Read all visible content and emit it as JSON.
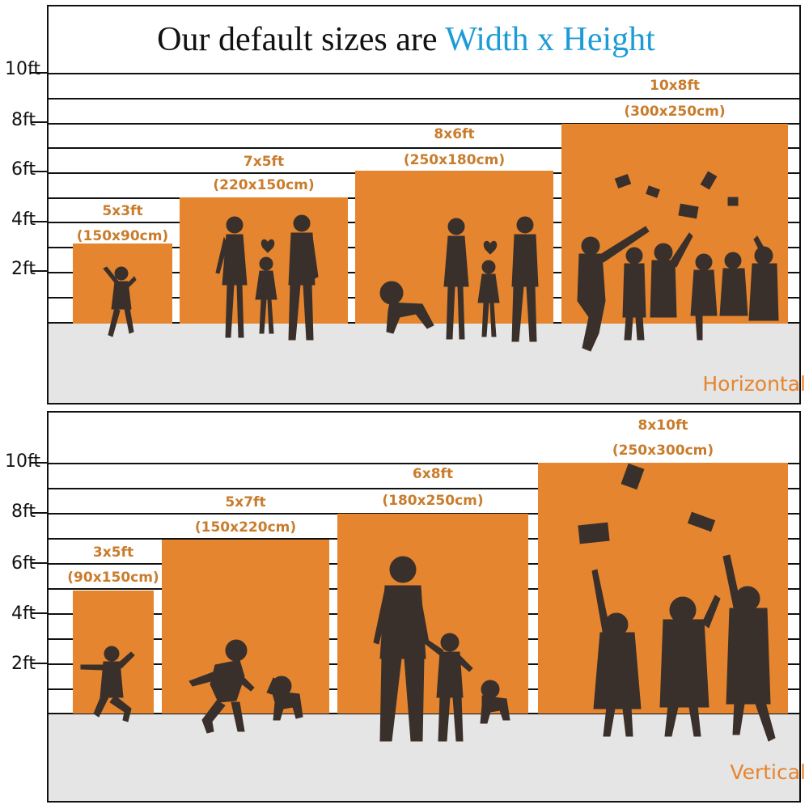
{
  "title": {
    "prefix": "Our default sizes are",
    "highlight": "Width x Height"
  },
  "colors": {
    "backdrop": "#e5852f",
    "label": "#c97c2c",
    "highlight": "#1d9bd6",
    "floor": "#e5e5e5",
    "silhouette": "#3a302b"
  },
  "horizontal": {
    "label": "Horizontal",
    "y_axis": [
      "10ft",
      "8ft",
      "6ft",
      "4ft",
      "2ft"
    ],
    "sizes": [
      {
        "ft": "5x3ft",
        "cm": "(150x90cm)",
        "figure": "girl-silhouette"
      },
      {
        "ft": "7x5ft",
        "cm": "(220x150cm)",
        "figure": "family-silhouette"
      },
      {
        "ft": "8x6ft",
        "cm": "(250x180cm)",
        "figure": "family-with-baby-silhouette"
      },
      {
        "ft": "10x8ft",
        "cm": "(300x250cm)",
        "figure": "graduates-silhouette"
      }
    ]
  },
  "vertical": {
    "label": "Vertical",
    "y_axis": [
      "10ft",
      "8ft",
      "6ft",
      "4ft",
      "2ft"
    ],
    "sizes": [
      {
        "ft": "3x5ft",
        "cm": "(90x150cm)",
        "figure": "jumping-child-silhouette"
      },
      {
        "ft": "5x7ft",
        "cm": "(150x220cm)",
        "figure": "child-and-dog-silhouette"
      },
      {
        "ft": "6x8ft",
        "cm": "(180x250cm)",
        "figure": "father-son-dog-silhouette"
      },
      {
        "ft": "8x10ft",
        "cm": "(250x300cm)",
        "figure": "graduates-silhouette"
      }
    ]
  }
}
